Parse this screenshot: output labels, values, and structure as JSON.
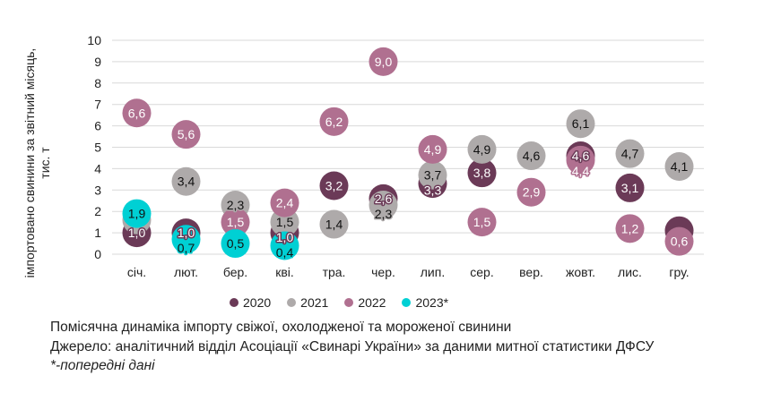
{
  "chart_data": {
    "type": "scatter",
    "title": "",
    "ylabel": "імпортовано свинини за звітний місяць, тис. т",
    "ylim": [
      0,
      10
    ],
    "yticks": [
      0,
      1,
      2,
      3,
      4,
      5,
      6,
      7,
      8,
      9,
      10
    ],
    "grid": true,
    "legend_placement": "bottom",
    "categories": [
      "січ.",
      "лют.",
      "бер.",
      "кві.",
      "тра.",
      "чер.",
      "лип.",
      "сер.",
      "вер.",
      "жовт.",
      "лис.",
      "гру."
    ],
    "series": [
      {
        "name": "2020",
        "color": "#6b3a57",
        "label_color": "#ffffff",
        "values": [
          1.0,
          1.0,
          null,
          1.0,
          3.2,
          2.6,
          3.3,
          3.8,
          null,
          4.6,
          3.1,
          1.1
        ],
        "labels": [
          "1,0",
          "1,0",
          null,
          "1,0",
          "3,2",
          "2,6",
          "3,3",
          "3,8",
          null,
          "4,6",
          "3,1",
          null
        ]
      },
      {
        "name": "2021",
        "color": "#aeaaaa",
        "label_color": "#111111",
        "values": [
          1.6,
          3.4,
          2.3,
          1.5,
          1.4,
          2.3,
          3.7,
          4.9,
          4.6,
          6.1,
          4.7,
          4.1
        ],
        "labels": [
          null,
          "3,4",
          "2,3",
          "1,5",
          "1,4",
          "2,3",
          "3,7",
          "4,9",
          "4,6",
          "6,1",
          "4,7",
          "4,1"
        ]
      },
      {
        "name": "2022",
        "color": "#b07090",
        "label_color": "#ffffff",
        "values": [
          6.6,
          5.6,
          1.5,
          2.4,
          6.2,
          9.0,
          4.9,
          1.5,
          2.9,
          4.4,
          1.2,
          0.6
        ],
        "labels": [
          "6,6",
          "5,6",
          "1,5",
          "2,4",
          "6,2",
          "9,0",
          "4,9",
          "1,5",
          "2,9",
          "4,4",
          "1,2",
          "0,6"
        ]
      },
      {
        "name": "2023*",
        "color": "#00d0d4",
        "label_color": "#111111",
        "values": [
          1.9,
          0.7,
          0.5,
          0.4,
          null,
          null,
          null,
          null,
          null,
          null,
          null,
          null
        ],
        "labels": [
          "1,9",
          "0,7",
          "0,5",
          "0,4",
          null,
          null,
          null,
          null,
          null,
          null,
          null,
          null
        ]
      }
    ]
  },
  "caption": {
    "line1": "Помісячна динаміка імпорту свіжої, охолодженої та мороженої свинини",
    "line2": "Джерело: аналітичний відділ Асоціації «Свинарі України» за даними митної статистики ДФСУ",
    "line3": "*-попередні дані"
  }
}
